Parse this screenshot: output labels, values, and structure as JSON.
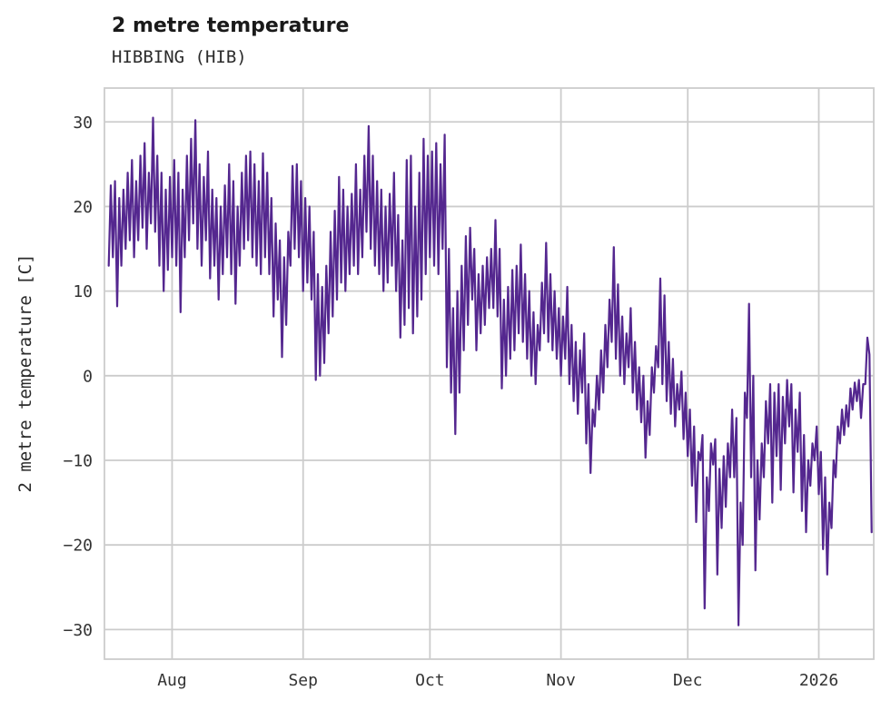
{
  "header": {
    "title": "2 metre temperature",
    "subtitle": "HIBBING (HIB)"
  },
  "chart_data": {
    "type": "line",
    "title": "2 metre temperature",
    "subtitle": "HIBBING (HIB)",
    "xlabel": "",
    "ylabel": "2 metre temperature [C]",
    "legend": "none",
    "grid": true,
    "grid_color": "#cccccc",
    "line_color": "#54278f",
    "background_color": "#ffffff",
    "ylim": [
      -33.5,
      34
    ],
    "xlim_days": [
      -1,
      181
    ],
    "y_ticks": [
      {
        "value": 30,
        "label": "30"
      },
      {
        "value": 20,
        "label": "20"
      },
      {
        "value": 10,
        "label": "10"
      },
      {
        "value": 0,
        "label": "0"
      },
      {
        "value": -10,
        "label": "−10"
      },
      {
        "value": -20,
        "label": "−20"
      },
      {
        "value": -30,
        "label": "−30"
      }
    ],
    "x_ticks": [
      {
        "day": 15,
        "label": "Aug"
      },
      {
        "day": 46,
        "label": "Sep"
      },
      {
        "day": 76,
        "label": "Oct"
      },
      {
        "day": 107,
        "label": "Nov"
      },
      {
        "day": 137,
        "label": "Dec"
      },
      {
        "day": 168,
        "label": "2026"
      }
    ],
    "x_description": "day index across the series (2 samples per day, daily low then high), spanning mid-July 2025 through mid-January 2026",
    "samples_per_day": 2,
    "y": [
      13,
      22.5,
      14,
      23,
      8.2,
      21,
      13,
      22,
      15,
      24,
      16,
      25.5,
      14,
      23,
      16,
      26,
      17.5,
      27.5,
      15,
      24,
      18,
      30.5,
      17,
      26,
      13,
      24,
      10,
      22,
      12.5,
      23.5,
      14,
      25.5,
      13,
      24,
      7.5,
      22,
      14,
      26,
      16,
      28,
      18,
      30.2,
      15,
      25,
      13,
      23.5,
      16,
      26.5,
      11.5,
      22,
      13,
      21,
      9,
      20,
      12,
      22.5,
      14,
      25,
      12,
      23,
      8.5,
      20,
      13,
      24,
      15,
      26,
      16,
      26.5,
      14,
      25,
      13,
      23,
      12,
      26.3,
      14,
      24,
      12,
      21,
      7,
      18,
      9,
      16,
      2.2,
      14,
      6,
      17,
      13,
      24.8,
      15,
      25,
      14,
      23,
      10,
      21,
      11,
      20,
      9,
      17,
      -0.5,
      12,
      0,
      10.5,
      1.5,
      13,
      5,
      17,
      7,
      19.5,
      9,
      23.5,
      11,
      22,
      10,
      20,
      12,
      21.5,
      13,
      25,
      12,
      22,
      14,
      26,
      17,
      29.5,
      15,
      26,
      13,
      23,
      12,
      22,
      10,
      20,
      11,
      21.5,
      13,
      24,
      10,
      19,
      4.5,
      16,
      6,
      25.5,
      8,
      26,
      5,
      20,
      7,
      24,
      9,
      28,
      12,
      26,
      14,
      26.5,
      13,
      27.5,
      12,
      25,
      15,
      28.5,
      1,
      15,
      -2,
      8,
      -6.9,
      10,
      -2,
      13,
      3,
      16.5,
      6,
      17.5,
      9,
      15,
      3,
      12,
      5,
      13,
      6,
      14,
      8,
      15,
      8,
      18.4,
      7,
      15,
      -1.5,
      9,
      0,
      10.5,
      2,
      12.5,
      3,
      13,
      5,
      15.5,
      4,
      12,
      2,
      10,
      0,
      7.5,
      -1,
      6,
      3,
      11,
      5,
      15.7,
      4,
      12,
      3,
      10,
      2,
      8,
      0,
      7,
      2,
      10.5,
      -1,
      6,
      -3,
      4,
      -4.5,
      3,
      -2,
      5,
      -8,
      -1,
      -11.5,
      -4,
      -6,
      0,
      -4,
      3,
      -2,
      6,
      1,
      9,
      4,
      15.2,
      2,
      10.8,
      0,
      7,
      -1,
      5,
      1,
      8,
      -2,
      4,
      -4,
      1,
      -5.5,
      0,
      -9.7,
      -3,
      -7,
      1,
      -2,
      3.5,
      1,
      11.5,
      -1,
      9.5,
      -3,
      4,
      -4.5,
      2,
      -6,
      -1,
      -4,
      0.5,
      -7.5,
      -2,
      -9.5,
      -4,
      -13,
      -6,
      -17.3,
      -9,
      -10,
      -7,
      -27.5,
      -12,
      -16,
      -8,
      -10.5,
      -7.5,
      -23.5,
      -11,
      -18,
      -9.5,
      -15.5,
      -8,
      -12,
      -4,
      -12,
      -5,
      -29.5,
      -15,
      -20,
      -2,
      -5,
      8.5,
      -12,
      0,
      -23,
      -10,
      -17,
      -8,
      -12,
      -3,
      -8,
      -1,
      -15,
      -2,
      -9.5,
      -1,
      -13.5,
      -2.5,
      -8,
      -0.5,
      -6,
      -1,
      -13.8,
      -4,
      -9,
      -2,
      -16,
      -7,
      -18.5,
      -10,
      -13,
      -8,
      -10,
      -6,
      -14,
      -9,
      -20.5,
      -12,
      -23.5,
      -15,
      -18,
      -10,
      -12,
      -6,
      -8,
      -4,
      -7,
      -3.5,
      -6,
      -1.5,
      -4,
      -0.8,
      -3,
      -0.5,
      -5,
      -1,
      -1,
      4.5,
      2.5,
      -18.5
    ]
  }
}
